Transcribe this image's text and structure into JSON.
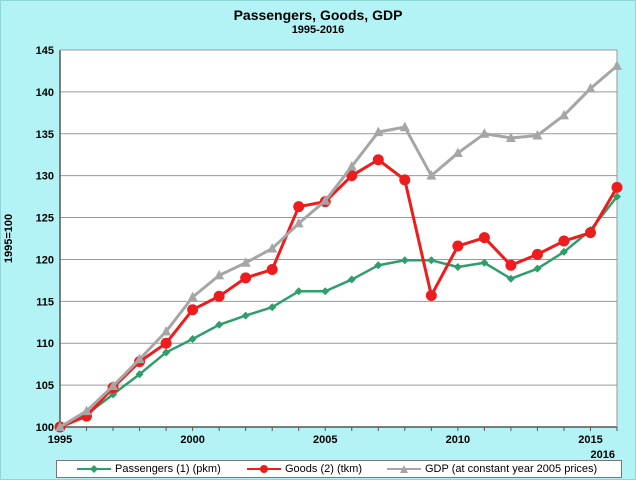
{
  "chart_data": {
    "type": "line",
    "title": "Passengers, Goods, GDP",
    "subtitle": "1995-2016",
    "ylabel": "1995=100",
    "ylim": [
      100,
      145
    ],
    "yticks": [
      100,
      105,
      110,
      115,
      120,
      125,
      130,
      135,
      140,
      145
    ],
    "xlim": [
      1995,
      2016
    ],
    "xticks": [
      1995,
      2000,
      2005,
      2010,
      2015
    ],
    "xtick_last": "2016",
    "x": [
      1995,
      1996,
      1997,
      1998,
      1999,
      2000,
      2001,
      2002,
      2003,
      2004,
      2005,
      2006,
      2007,
      2008,
      2009,
      2010,
      2011,
      2012,
      2013,
      2014,
      2015,
      2016
    ],
    "grid": true,
    "legend_position": "bottom",
    "series": [
      {
        "name": "Passengers (1) (pkm)",
        "color": "#2e9e6a",
        "marker": "diamond",
        "values": [
          100,
          101.5,
          103.9,
          106.3,
          108.9,
          110.5,
          112.2,
          113.3,
          114.3,
          116.2,
          116.2,
          117.6,
          119.3,
          119.9,
          119.9,
          119.1,
          119.6,
          117.7,
          118.9,
          120.9,
          123.5,
          127.5
        ]
      },
      {
        "name": "Goods (2) (tkm)",
        "color": "#ee1c1c",
        "marker": "circle",
        "values": [
          100,
          101.3,
          104.7,
          107.8,
          110,
          114,
          115.6,
          117.8,
          118.8,
          126.3,
          126.9,
          130,
          131.9,
          129.5,
          115.7,
          121.6,
          122.6,
          119.3,
          120.6,
          122.2,
          123.2,
          128.6
        ]
      },
      {
        "name": "GDP (at constant year 2005 prices)",
        "color": "#a6a6a6",
        "marker": "triangle",
        "values": [
          100,
          101.9,
          104.9,
          108.1,
          111.4,
          115.5,
          118.1,
          119.6,
          121.3,
          124.3,
          127,
          131.1,
          135.2,
          135.8,
          130,
          132.7,
          135,
          134.5,
          134.8,
          137.2,
          140.4,
          143.1
        ]
      }
    ]
  }
}
